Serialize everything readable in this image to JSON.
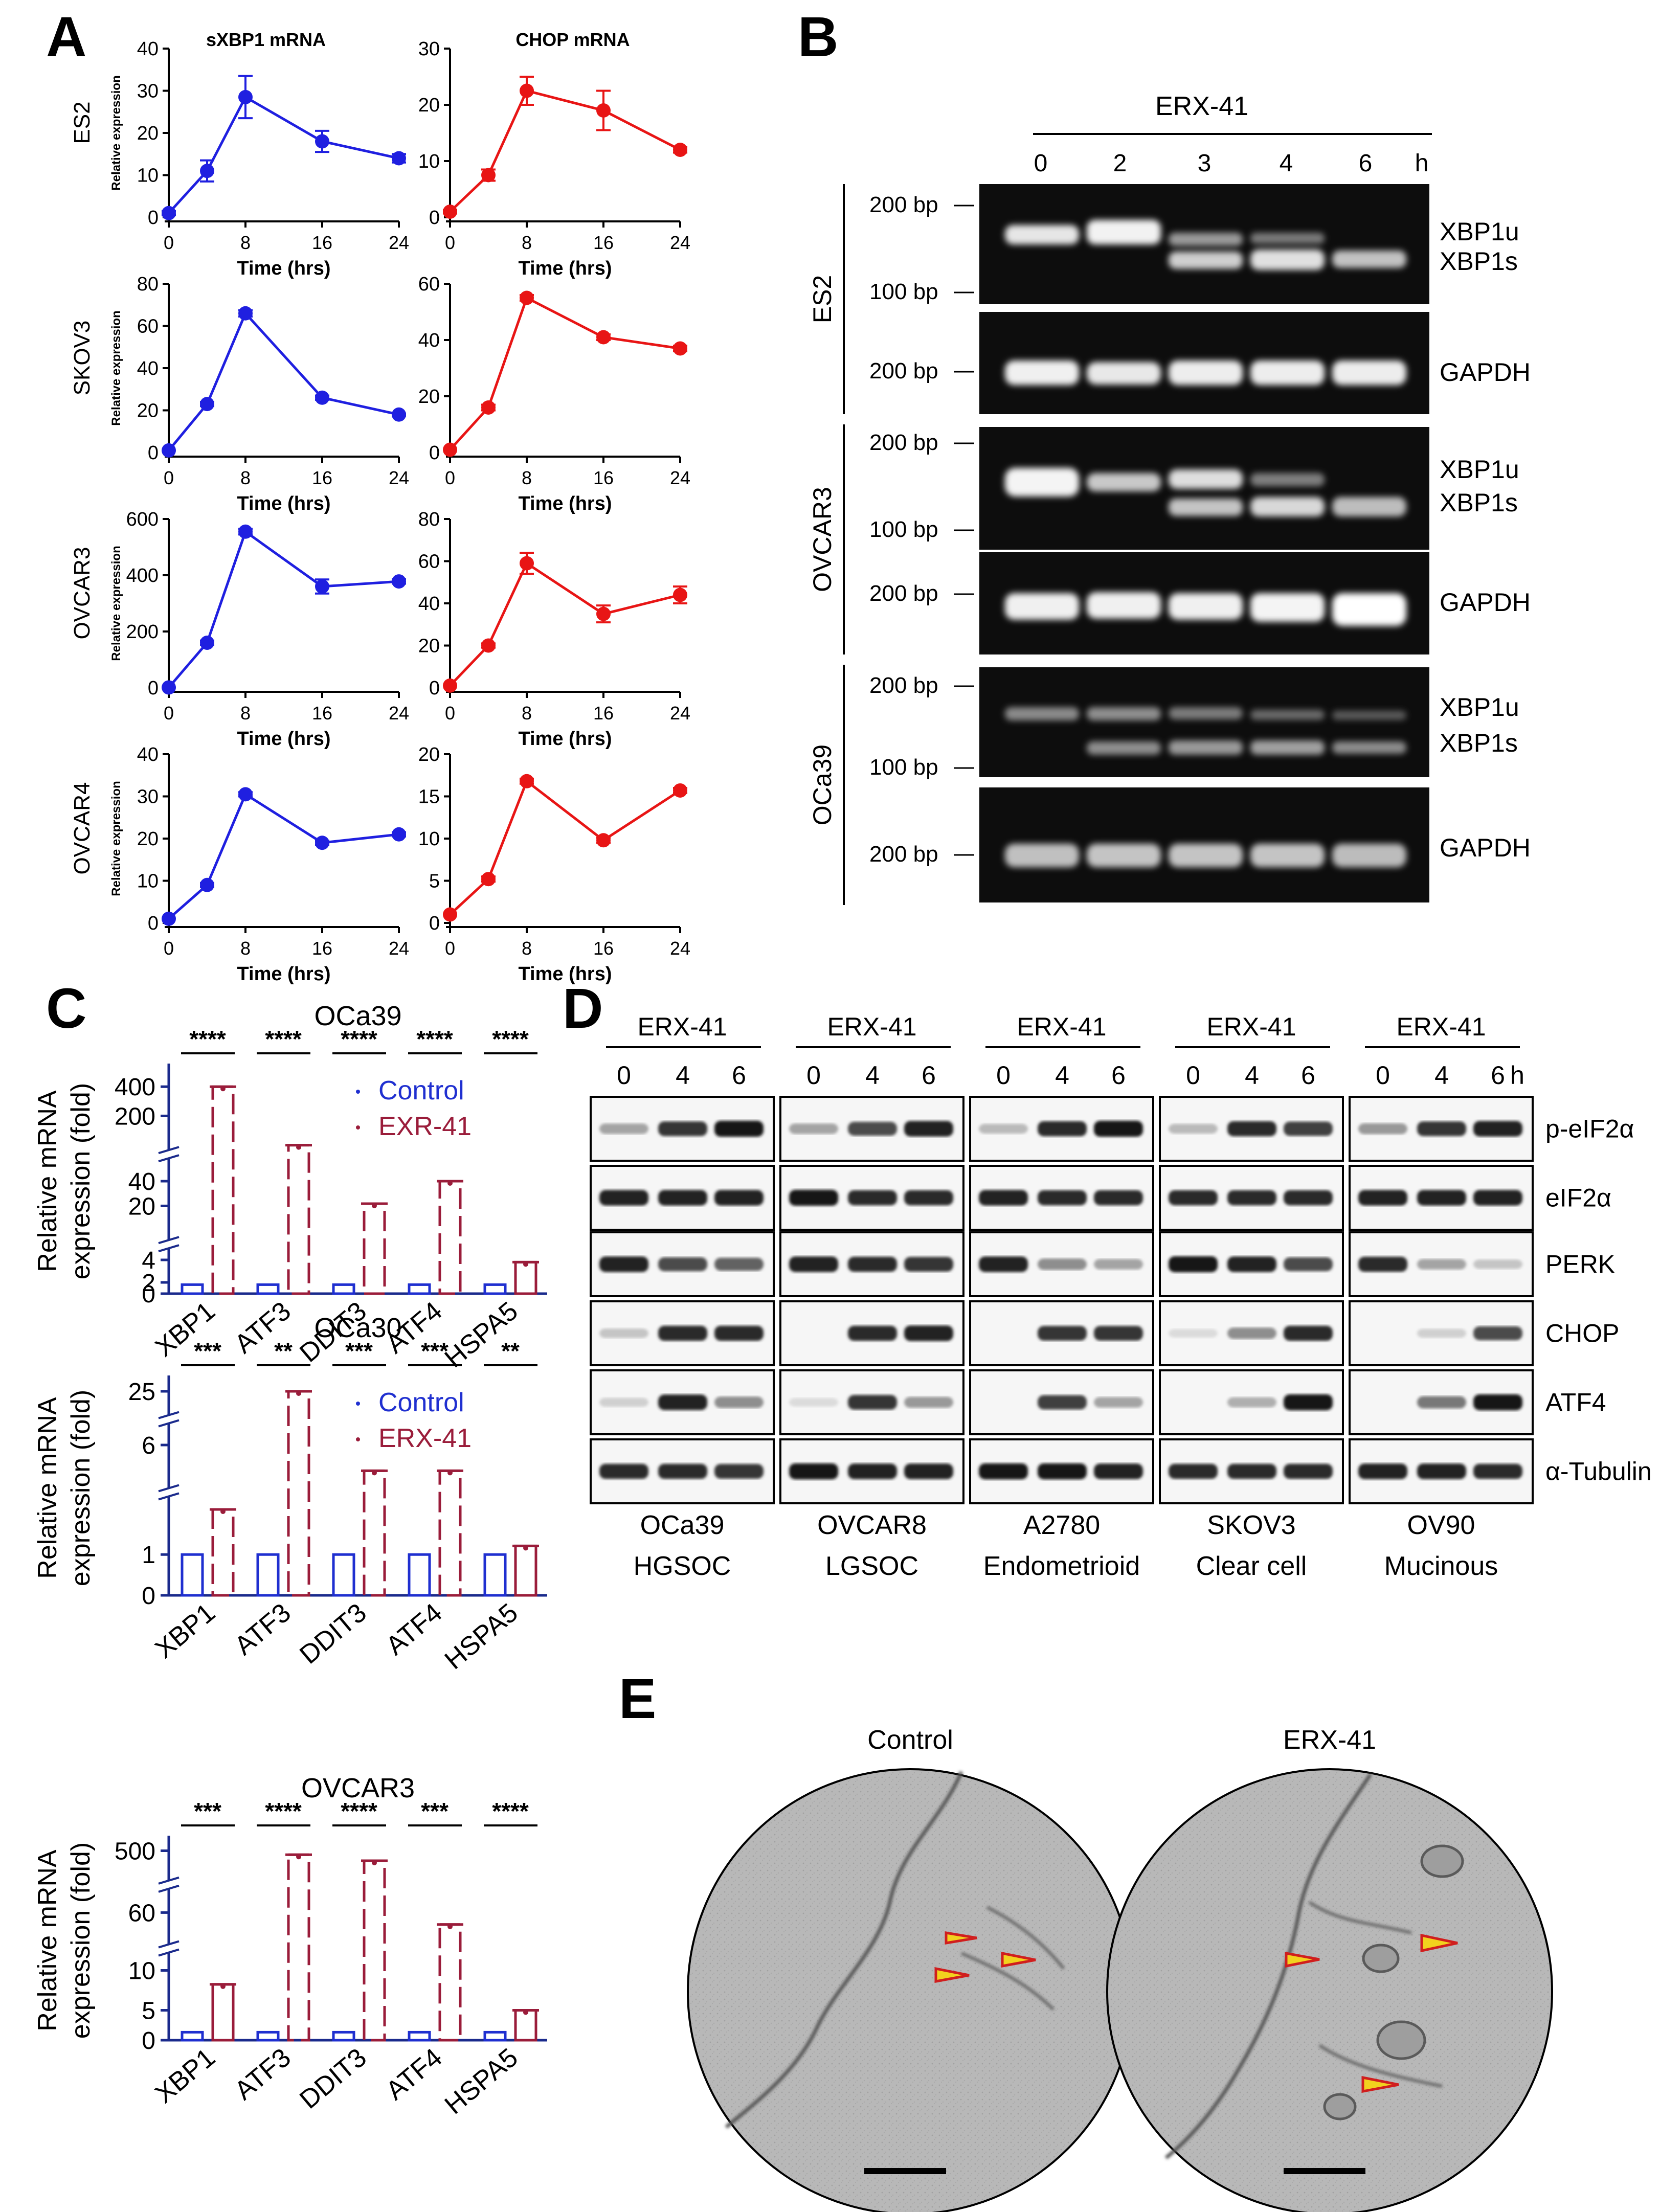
{
  "panel_labels": {
    "A": "A",
    "B": "B",
    "C": "C",
    "D": "D",
    "E": "E"
  },
  "common": {
    "time_xlabel": "Time (hrs)",
    "rel_expr": "Relative expression",
    "rel_mrna_1": "Relative mRNA",
    "rel_mrna_2": "expression (fold)",
    "bp200": "200 bp",
    "bp100": "100 bp",
    "hour": "h"
  },
  "colors": {
    "sxbp1": "#1f1fe0",
    "chop": "#e81515",
    "control": "#1f2fd0",
    "erx": "#9a1c3a",
    "arrow_fill": "#f2d21e",
    "arrow_stroke": "#d01e1e"
  },
  "panel_a": {
    "col_titles": [
      "sXBP1 mRNA",
      "CHOP mRNA"
    ],
    "cell_lines": [
      "ES2",
      "SKOV3",
      "OVCAR3",
      "OVCAR4"
    ]
  },
  "chart_data": [
    {
      "type": "line",
      "title": "sXBP1 mRNA",
      "cell_line": "ES2",
      "xlabel": "Time (hrs)",
      "ylabel": "Relative expression",
      "x": [
        0,
        4,
        8,
        16,
        24
      ],
      "values": [
        1,
        11,
        28.5,
        18,
        14
      ],
      "errors": [
        0.5,
        2.5,
        5,
        2.5,
        1
      ],
      "ylim": [
        0,
        40
      ],
      "yticks": [
        0,
        10,
        20,
        30,
        40
      ],
      "xticks": [
        0,
        8,
        16,
        24
      ]
    },
    {
      "type": "line",
      "title": "CHOP mRNA",
      "cell_line": "ES2",
      "xlabel": "Time (hrs)",
      "ylabel": "",
      "x": [
        0,
        4,
        8,
        16,
        24
      ],
      "values": [
        1,
        7.5,
        22.5,
        19,
        12
      ],
      "errors": [
        0.3,
        1,
        2.5,
        3.5,
        0.5
      ],
      "ylim": [
        0,
        30
      ],
      "yticks": [
        0,
        10,
        20,
        30
      ],
      "xticks": [
        0,
        8,
        16,
        24
      ]
    },
    {
      "type": "line",
      "title": "sXBP1 mRNA",
      "cell_line": "SKOV3",
      "xlabel": "Time (hrs)",
      "ylabel": "Relative expression",
      "x": [
        0,
        4,
        8,
        16,
        24
      ],
      "values": [
        1,
        23,
        66,
        26,
        18
      ],
      "errors": [
        0,
        1,
        1.5,
        1,
        0.5
      ],
      "ylim": [
        0,
        80
      ],
      "yticks": [
        0,
        20,
        40,
        60,
        80
      ],
      "xticks": [
        0,
        8,
        16,
        24
      ]
    },
    {
      "type": "line",
      "title": "CHOP mRNA",
      "cell_line": "SKOV3",
      "xlabel": "Time (hrs)",
      "ylabel": "",
      "x": [
        0,
        4,
        8,
        16,
        24
      ],
      "values": [
        1,
        16,
        55,
        41,
        37
      ],
      "errors": [
        0,
        1,
        1,
        1,
        1
      ],
      "ylim": [
        0,
        60
      ],
      "yticks": [
        0,
        20,
        40,
        60
      ],
      "xticks": [
        0,
        8,
        16,
        24
      ]
    },
    {
      "type": "line",
      "title": "sXBP1 mRNA",
      "cell_line": "OVCAR3",
      "xlabel": "Time (hrs)",
      "ylabel": "Relative expression",
      "x": [
        0,
        4,
        8,
        16,
        24
      ],
      "values": [
        1,
        160,
        555,
        360,
        378
      ],
      "errors": [
        0,
        8,
        10,
        25,
        8
      ],
      "ylim": [
        0,
        600
      ],
      "yticks": [
        0,
        200,
        400,
        600
      ],
      "xticks": [
        0,
        8,
        16,
        24
      ]
    },
    {
      "type": "line",
      "title": "CHOP mRNA",
      "cell_line": "OVCAR3",
      "xlabel": "Time (hrs)",
      "ylabel": "",
      "x": [
        0,
        4,
        8,
        16,
        24
      ],
      "values": [
        1,
        20,
        59,
        35,
        44
      ],
      "errors": [
        0,
        1,
        5,
        4,
        4
      ],
      "ylim": [
        0,
        80
      ],
      "yticks": [
        0,
        20,
        40,
        60,
        80
      ],
      "xticks": [
        0,
        8,
        16,
        24
      ]
    },
    {
      "type": "line",
      "title": "sXBP1 mRNA",
      "cell_line": "OVCAR4",
      "xlabel": "Time (hrs)",
      "ylabel": "Relative expression",
      "x": [
        0,
        4,
        8,
        16,
        24
      ],
      "values": [
        1,
        9,
        30.5,
        19,
        21
      ],
      "errors": [
        0,
        0.5,
        0.5,
        0.5,
        0.5
      ],
      "ylim": [
        0,
        40
      ],
      "yticks": [
        0,
        10,
        20,
        30,
        40
      ],
      "xticks": [
        0,
        8,
        16,
        24
      ]
    },
    {
      "type": "line",
      "title": "CHOP mRNA",
      "cell_line": "OVCAR4",
      "xlabel": "Time (hrs)",
      "ylabel": "",
      "x": [
        0,
        4,
        8,
        16,
        24
      ],
      "values": [
        1,
        5.2,
        16.8,
        9.8,
        15.7
      ],
      "errors": [
        0,
        0.3,
        0.3,
        0.3,
        0.3
      ],
      "ylim": [
        0,
        20
      ],
      "yticks": [
        0,
        5,
        10,
        15,
        20
      ],
      "xticks": [
        0,
        8,
        16,
        24
      ]
    },
    {
      "type": "bar",
      "title": "OCa39",
      "ylabel": "Relative mRNA expression (fold)",
      "categories": [
        "XBP1",
        "ATF3",
        "DDIT3",
        "ATF4",
        "HSPA5"
      ],
      "series": [
        {
          "name": "Control",
          "values": [
            1,
            1,
            1,
            1,
            1
          ]
        },
        {
          "name": "EXR-41",
          "values": [
            440,
            120,
            18,
            45,
            5
          ]
        }
      ],
      "significance": [
        "****",
        "****",
        "****",
        "****",
        "****"
      ],
      "yticks": [
        "0",
        "2",
        "4",
        "20",
        "40",
        "200",
        "400"
      ]
    },
    {
      "type": "bar",
      "title": "OCa30",
      "ylabel": "Relative mRNA expression (fold)",
      "categories": [
        "XBP1",
        "ATF3",
        "DDIT3",
        "ATF4",
        "HSPA5"
      ],
      "series": [
        {
          "name": "Control",
          "values": [
            1,
            1,
            1,
            1,
            1
          ]
        },
        {
          "name": "ERX-41",
          "values": [
            3,
            25,
            4,
            4,
            1.3
          ]
        }
      ],
      "significance": [
        "***",
        "**",
        "***",
        "***",
        "**"
      ],
      "yticks": [
        "0",
        "1",
        "6",
        "25"
      ]
    },
    {
      "type": "bar",
      "title": "OVCAR3",
      "ylabel": "Relative mRNA expression (fold)",
      "categories": [
        "XBP1",
        "ATF3",
        "DDIT3",
        "ATF4",
        "HSPA5"
      ],
      "series": [
        {
          "name": "Control",
          "values": [
            1,
            1,
            1,
            1,
            1
          ]
        },
        {
          "name": "ERX-41",
          "values": [
            9,
            500,
            450,
            60,
            5
          ]
        }
      ],
      "significance": [
        "***",
        "****",
        "****",
        "***",
        "****"
      ],
      "yticks": [
        "0",
        "5",
        "10",
        "60",
        "500"
      ]
    }
  ],
  "panel_b": {
    "treatment": "ERX-41",
    "time_labels": [
      "0",
      "2",
      "3",
      "4",
      "6"
    ],
    "cell_lines": [
      "ES2",
      "OVCAR3",
      "OCa39"
    ],
    "band_xbp1u": "XBP1u",
    "band_xbp1s": "XBP1s",
    "band_gapdh": "GAPDH"
  },
  "panel_c": {
    "legend_control": "Control",
    "legend_erx_1": "EXR-41",
    "legend_erx_2": "ERX-41"
  },
  "panel_d": {
    "treatment": "ERX-41",
    "time_labels": [
      "0",
      "4",
      "6"
    ],
    "proteins": [
      "p-eIF2α",
      "eIF2α",
      "PERK",
      "CHOP",
      "ATF4",
      "α-Tubulin"
    ],
    "cell_lines": [
      {
        "name": "OCa39",
        "subtype": "HGSOC"
      },
      {
        "name": "OVCAR8",
        "subtype": "LGSOC"
      },
      {
        "name": "A2780",
        "subtype": "Endometrioid"
      },
      {
        "name": "SKOV3",
        "subtype": "Clear cell"
      },
      {
        "name": "OV90",
        "subtype": "Mucinous"
      }
    ]
  },
  "panel_e": {
    "labels": [
      "Control",
      "ERX-41"
    ]
  }
}
